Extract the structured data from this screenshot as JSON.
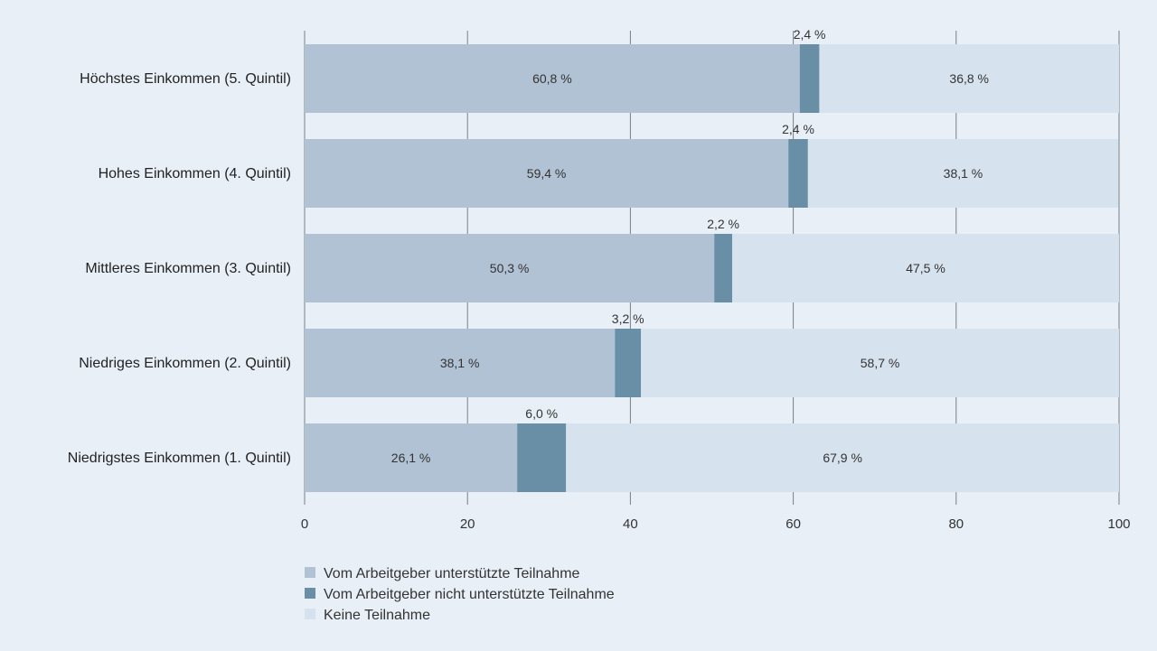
{
  "chart_data": {
    "type": "bar",
    "orientation": "horizontal",
    "stacked": true,
    "title": "",
    "xlabel": "",
    "ylabel": "",
    "xlim": [
      0,
      100
    ],
    "x_ticks": [
      0,
      20,
      40,
      60,
      80,
      100
    ],
    "grid": "vertical",
    "legend_position": "bottom-left",
    "value_suffix": " %",
    "decimal_separator": ",",
    "categories": [
      "Höchstes Einkommen (5. Quintil)",
      "Hohes Einkommen (4. Quintil)",
      "Mittleres Einkommen (3. Quintil)",
      "Niedriges Einkommen (2. Quintil)",
      "Niedrigstes Einkommen (1. Quintil)"
    ],
    "series": [
      {
        "name": "Vom Arbeitgeber unterstützte Teilnahme",
        "color": "#b0c2d3",
        "values": [
          60.8,
          59.4,
          50.3,
          38.1,
          26.1
        ]
      },
      {
        "name": "Vom Arbeitgeber nicht unterstützte Teilnahme",
        "color": "#688fa6",
        "values": [
          2.4,
          2.4,
          2.2,
          3.2,
          6.0
        ]
      },
      {
        "name": "Keine Teilnahme",
        "color": "#d6e2ee",
        "values": [
          36.8,
          38.1,
          47.5,
          58.7,
          67.9
        ]
      }
    ]
  }
}
